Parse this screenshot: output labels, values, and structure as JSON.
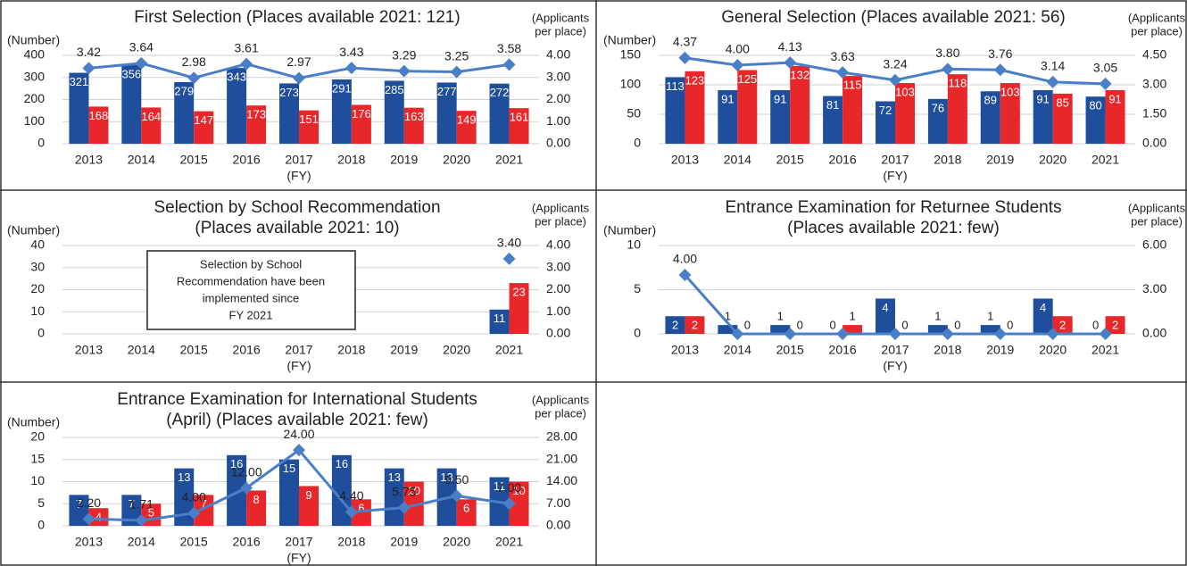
{
  "chart_data": [
    {
      "type": "bar",
      "title": [
        "First Selection (Places available 2021: 121)"
      ],
      "y_label": "(Number)",
      "y2_label": [
        "(Applicants",
        "per place)"
      ],
      "x_label": "(FY)",
      "categories": [
        "2013",
        "2014",
        "2015",
        "2016",
        "2017",
        "2018",
        "2019",
        "2020",
        "2021"
      ],
      "ylim": [
        0,
        400
      ],
      "yticks": [
        0,
        100,
        200,
        300,
        400
      ],
      "y2lim": [
        0,
        4
      ],
      "y2ticks": [
        {
          "value": 0,
          "label": "0.00"
        },
        {
          "value": 1,
          "label": "1.00"
        },
        {
          "value": 2,
          "label": "2.00"
        },
        {
          "value": 3,
          "label": "3.00"
        },
        {
          "value": 4,
          "label": "4.00"
        }
      ],
      "grid": true,
      "series": [
        {
          "type": "bar",
          "color": "#1f4e9c",
          "values": [
            321,
            356,
            279,
            343,
            273,
            291,
            285,
            277,
            272
          ]
        },
        {
          "type": "bar",
          "color": "#e8272a",
          "values": [
            168,
            164,
            147,
            173,
            151,
            176,
            163,
            149,
            161
          ]
        },
        {
          "type": "line",
          "axis": "y2",
          "color": "#4a7fc8",
          "values": [
            3.42,
            3.64,
            2.98,
            3.61,
            2.97,
            3.43,
            3.29,
            3.25,
            3.58
          ],
          "value_labels": [
            "3.42",
            "3.64",
            "2.98",
            "3.61",
            "2.97",
            "3.43",
            "3.29",
            "3.25",
            "3.58"
          ]
        }
      ]
    },
    {
      "type": "bar",
      "title": [
        "General Selection (Places available 2021: 56)"
      ],
      "y_label": "(Number)",
      "y2_label": [
        "(Applicants",
        "per place)"
      ],
      "x_label": "(FY)",
      "categories": [
        "2013",
        "2014",
        "2015",
        "2016",
        "2017",
        "2018",
        "2019",
        "2020",
        "2021"
      ],
      "ylim": [
        0,
        150
      ],
      "yticks": [
        0,
        50,
        100,
        150
      ],
      "y2lim": [
        0,
        4.5
      ],
      "y2ticks": [
        {
          "value": 0,
          "label": "0.00"
        },
        {
          "value": 1.5,
          "label": "1.50"
        },
        {
          "value": 3,
          "label": "3.00"
        },
        {
          "value": 4.5,
          "label": "4.50"
        }
      ],
      "grid": true,
      "series": [
        {
          "type": "bar",
          "color": "#1f4e9c",
          "values": [
            113,
            91,
            91,
            81,
            72,
            76,
            89,
            91,
            80
          ]
        },
        {
          "type": "bar",
          "color": "#e8272a",
          "values": [
            123,
            125,
            132,
            115,
            103,
            118,
            103,
            85,
            91
          ]
        },
        {
          "type": "line",
          "axis": "y2",
          "color": "#4a7fc8",
          "values": [
            4.37,
            4.0,
            4.13,
            3.63,
            3.24,
            3.8,
            3.76,
            3.14,
            3.05
          ],
          "value_labels": [
            "4.37",
            "4.00",
            "4.13",
            "3.63",
            "3.24",
            "3.80",
            "3.76",
            "3.14",
            "3.05"
          ]
        }
      ]
    },
    {
      "type": "bar",
      "title": [
        "Selection by School Recommendation",
        "(Places available 2021: 10)"
      ],
      "y_label": "(Number)",
      "y2_label": [
        "(Applicants",
        "per place)"
      ],
      "x_label": "(FY)",
      "annotation": [
        "Selection by School",
        "Recommendation have been",
        "implemented since",
        "FY 2021"
      ],
      "categories": [
        "2013",
        "2014",
        "2015",
        "2016",
        "2017",
        "2018",
        "2019",
        "2020",
        "2021"
      ],
      "ylim": [
        0,
        40
      ],
      "yticks": [
        0,
        10,
        20,
        30,
        40
      ],
      "y2lim": [
        0,
        4
      ],
      "y2ticks": [
        {
          "value": 0,
          "label": "0.00"
        },
        {
          "value": 1,
          "label": "1.00"
        },
        {
          "value": 2,
          "label": "2.00"
        },
        {
          "value": 3,
          "label": "3.00"
        },
        {
          "value": 4,
          "label": "4.00"
        }
      ],
      "grid": true,
      "series": [
        {
          "type": "bar",
          "color": "#1f4e9c",
          "values": [
            null,
            null,
            null,
            null,
            null,
            null,
            null,
            null,
            11
          ]
        },
        {
          "type": "bar",
          "color": "#e8272a",
          "values": [
            null,
            null,
            null,
            null,
            null,
            null,
            null,
            null,
            23
          ]
        },
        {
          "type": "line",
          "axis": "y2",
          "color": "#4a7fc8",
          "values": [
            null,
            null,
            null,
            null,
            null,
            null,
            null,
            null,
            3.4
          ],
          "value_labels": [
            null,
            null,
            null,
            null,
            null,
            null,
            null,
            null,
            "3.40"
          ]
        }
      ]
    },
    {
      "type": "bar",
      "title": [
        "Entrance Examination for Returnee Students",
        "(Places available 2021: few)"
      ],
      "y_label": "(Number)",
      "y2_label": [
        "(Applicants",
        "per place)"
      ],
      "x_label": "(FY)",
      "categories": [
        "2013",
        "2014",
        "2015",
        "2016",
        "2017",
        "2018",
        "2019",
        "2020",
        "2021"
      ],
      "ylim": [
        0,
        10
      ],
      "yticks": [
        0,
        5,
        10
      ],
      "y2lim": [
        0,
        6
      ],
      "y2ticks": [
        {
          "value": 0,
          "label": "0.00"
        },
        {
          "value": 3,
          "label": "3.00"
        },
        {
          "value": 6,
          "label": "6.00"
        }
      ],
      "grid": true,
      "series": [
        {
          "type": "bar",
          "color": "#1f4e9c",
          "values": [
            2,
            1,
            1,
            0,
            4,
            1,
            1,
            4,
            0
          ]
        },
        {
          "type": "bar",
          "color": "#e8272a",
          "values": [
            2,
            0,
            0,
            1,
            0,
            0,
            0,
            2,
            2
          ]
        },
        {
          "type": "line",
          "axis": "y2",
          "color": "#4a7fc8",
          "values": [
            4.0,
            0,
            0,
            0,
            0,
            0,
            0,
            0,
            0
          ],
          "value_labels": [
            "4.00",
            null,
            null,
            null,
            null,
            null,
            null,
            null,
            null
          ]
        }
      ]
    },
    {
      "type": "bar",
      "title": [
        "Entrance Examination for International Students",
        "(April) (Places available 2021: few)"
      ],
      "y_label": "(Number)",
      "y2_label": [
        "(Applicants",
        "per place)"
      ],
      "x_label": "(FY)",
      "categories": [
        "2013",
        "2014",
        "2015",
        "2016",
        "2017",
        "2018",
        "2019",
        "2020",
        "2021"
      ],
      "ylim": [
        0,
        20
      ],
      "yticks": [
        0,
        5,
        10,
        15,
        20
      ],
      "y2lim": [
        0,
        28
      ],
      "y2ticks": [
        {
          "value": 0,
          "label": "0.00"
        },
        {
          "value": 7,
          "label": "7.00"
        },
        {
          "value": 14,
          "label": "14.00"
        },
        {
          "value": 21,
          "label": "21.00"
        },
        {
          "value": 28,
          "label": "28.00"
        }
      ],
      "grid": true,
      "series": [
        {
          "type": "bar",
          "color": "#1f4e9c",
          "values": [
            7,
            7,
            13,
            16,
            15,
            16,
            13,
            13,
            11
          ]
        },
        {
          "type": "bar",
          "color": "#e8272a",
          "values": [
            4,
            5,
            7,
            8,
            9,
            6,
            10,
            6,
            10
          ]
        },
        {
          "type": "line",
          "axis": "y2",
          "color": "#4a7fc8",
          "values": [
            2.2,
            1.71,
            4.0,
            12.0,
            24.0,
            4.4,
            5.75,
            9.5,
            7.0
          ],
          "value_labels": [
            "2.20",
            "1.71",
            "4.00",
            "12.00",
            "24.00",
            "4.40",
            "5.75",
            "9.50",
            "7.00"
          ]
        }
      ]
    }
  ]
}
